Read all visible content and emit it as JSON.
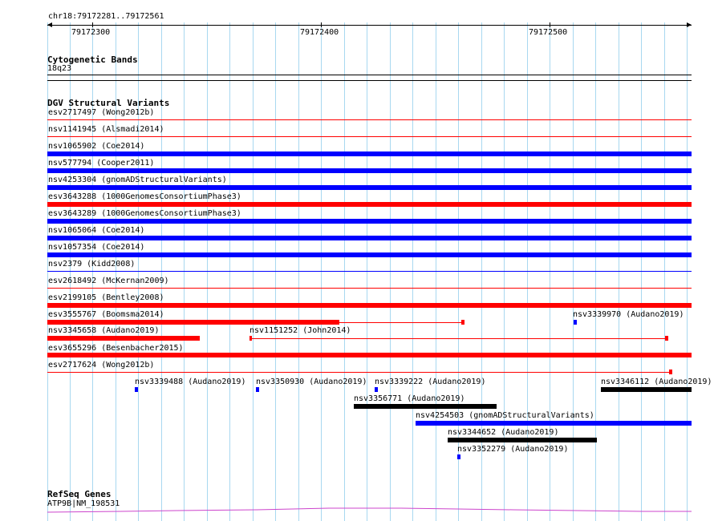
{
  "ruler": {
    "position": "chr18:79172281..79172561",
    "ticks": [
      "79172300",
      "79172400",
      "79172500"
    ]
  },
  "cytoband": {
    "title": "Cytogenetic Bands",
    "band": "18q23"
  },
  "dgv": {
    "title": "DGV Structural Variants",
    "colors": {
      "loss": "#ff0000",
      "gain": "#0000ff",
      "other": "#000000"
    },
    "rows": [
      {
        "label": "esv2717497 (Wong2012b)"
      },
      {
        "label": "nsv1141945 (Alsmadi2014)"
      },
      {
        "label": "nsv1065902 (Coe2014)"
      },
      {
        "label": "nsv577794 (Cooper2011)"
      },
      {
        "label": "nsv4253304 (gnomADStructuralVariants)"
      },
      {
        "label": "esv3643288 (1000GenomesConsortiumPhase3)"
      },
      {
        "label": "esv3643289 (1000GenomesConsortiumPhase3)"
      },
      {
        "label": "nsv1065064 (Coe2014)"
      },
      {
        "label": "nsv1057354 (Coe2014)"
      },
      {
        "label": "nsv2379 (Kidd2008)"
      },
      {
        "label": "esv2618492 (McKernan2009)"
      },
      {
        "label": "esv2199105 (Bentley2008)"
      },
      {
        "label": "esv3555767 (Boomsma2014)"
      },
      {
        "label": "nsv3339970 (Audano2019)"
      },
      {
        "label": "nsv3345658 (Audano2019)"
      },
      {
        "label": "nsv1151252 (John2014)"
      },
      {
        "label": "esv3655296 (Besenbacher2015)"
      },
      {
        "label": "esv2717624 (Wong2012b)"
      },
      {
        "label": "nsv3339488 (Audano2019)"
      },
      {
        "label": "nsv3350930 (Audano2019)"
      },
      {
        "label": "nsv3339222 (Audano2019)"
      },
      {
        "label": "nsv3346112 (Audano2019)"
      },
      {
        "label": "nsv3356771 (Audano2019)"
      },
      {
        "label": "nsv4254503 (gnomADStructuralVariants)"
      },
      {
        "label": "nsv3344652 (Audano2019)"
      },
      {
        "label": "nsv3352279 (Audano2019)"
      }
    ]
  },
  "refseq": {
    "title": "RefSeq Genes",
    "gene": "ATP9B|NM_198531",
    "color": "#cc44cc"
  }
}
